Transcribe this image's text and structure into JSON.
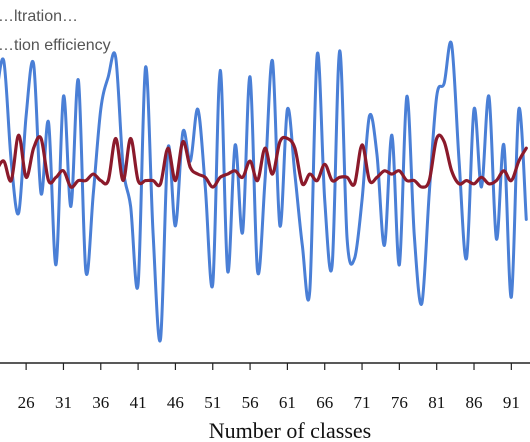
{
  "chart_data": {
    "type": "line",
    "title": "",
    "xlabel": "Number of classes",
    "ylabel": "",
    "grid": false,
    "legend_position": "top-left",
    "legend_entries": [
      "…ltration…",
      "…tion efficiency"
    ],
    "x_ticks": [
      "26",
      "31",
      "36",
      "41",
      "46",
      "51",
      "56",
      "61",
      "66",
      "71",
      "76",
      "81",
      "86",
      "91"
    ],
    "x_range": [
      22.5,
      93.5
    ],
    "y_range": [
      0,
      1
    ],
    "series": [
      {
        "color": "#4a7fd6",
        "x": [
          22,
          23,
          24,
          25,
          26,
          27,
          28,
          29,
          30,
          31,
          32,
          33,
          34,
          35,
          36,
          37,
          38,
          39,
          40,
          41,
          42,
          43,
          44,
          45,
          46,
          47,
          48,
          49,
          50,
          51,
          52,
          53,
          54,
          55,
          56,
          57,
          58,
          59,
          60,
          61,
          62,
          63,
          64,
          65,
          66,
          67,
          68,
          69,
          70,
          71,
          72,
          73,
          74,
          75,
          76,
          77,
          78,
          79,
          80,
          81,
          82,
          83,
          84,
          85,
          86,
          87,
          88,
          89,
          90,
          91,
          92,
          93
        ],
        "values": [
          0.82,
          0.93,
          0.62,
          0.46,
          0.76,
          0.92,
          0.52,
          0.74,
          0.3,
          0.82,
          0.48,
          0.87,
          0.28,
          0.52,
          0.78,
          0.88,
          0.94,
          0.6,
          0.48,
          0.24,
          0.91,
          0.4,
          0.07,
          0.66,
          0.42,
          0.71,
          0.62,
          0.78,
          0.54,
          0.24,
          0.9,
          0.28,
          0.67,
          0.4,
          0.88,
          0.28,
          0.56,
          0.93,
          0.42,
          0.78,
          0.58,
          0.36,
          0.22,
          0.95,
          0.5,
          0.3,
          0.96,
          0.38,
          0.32,
          0.5,
          0.76,
          0.64,
          0.36,
          0.7,
          0.3,
          0.82,
          0.39,
          0.18,
          0.52,
          0.82,
          0.86,
          0.98,
          0.62,
          0.32,
          0.78,
          0.54,
          0.82,
          0.38,
          0.67,
          0.2,
          0.78,
          0.44
        ]
      },
      {
        "color": "#8b1a2b",
        "x": [
          22,
          23,
          24,
          25,
          26,
          27,
          28,
          29,
          30,
          31,
          32,
          33,
          34,
          35,
          36,
          37,
          38,
          39,
          40,
          41,
          42,
          43,
          44,
          45,
          46,
          47,
          48,
          49,
          50,
          51,
          52,
          53,
          54,
          55,
          56,
          57,
          58,
          59,
          60,
          61,
          62,
          63,
          64,
          65,
          66,
          67,
          68,
          69,
          70,
          71,
          72,
          73,
          74,
          75,
          76,
          77,
          78,
          79,
          80,
          81,
          82,
          83,
          84,
          85,
          86,
          87,
          88,
          89,
          90,
          91,
          92,
          93
        ],
        "values": [
          0.59,
          0.62,
          0.56,
          0.7,
          0.57,
          0.66,
          0.69,
          0.56,
          0.57,
          0.59,
          0.54,
          0.56,
          0.56,
          0.58,
          0.56,
          0.56,
          0.69,
          0.56,
          0.69,
          0.56,
          0.56,
          0.56,
          0.55,
          0.66,
          0.56,
          0.68,
          0.6,
          0.58,
          0.57,
          0.54,
          0.57,
          0.58,
          0.59,
          0.57,
          0.62,
          0.56,
          0.66,
          0.58,
          0.68,
          0.69,
          0.66,
          0.55,
          0.58,
          0.56,
          0.61,
          0.56,
          0.57,
          0.57,
          0.55,
          0.67,
          0.56,
          0.57,
          0.59,
          0.58,
          0.59,
          0.56,
          0.56,
          0.54,
          0.56,
          0.69,
          0.68,
          0.59,
          0.55,
          0.56,
          0.55,
          0.57,
          0.55,
          0.56,
          0.59,
          0.56,
          0.62,
          0.66
        ]
      }
    ]
  }
}
